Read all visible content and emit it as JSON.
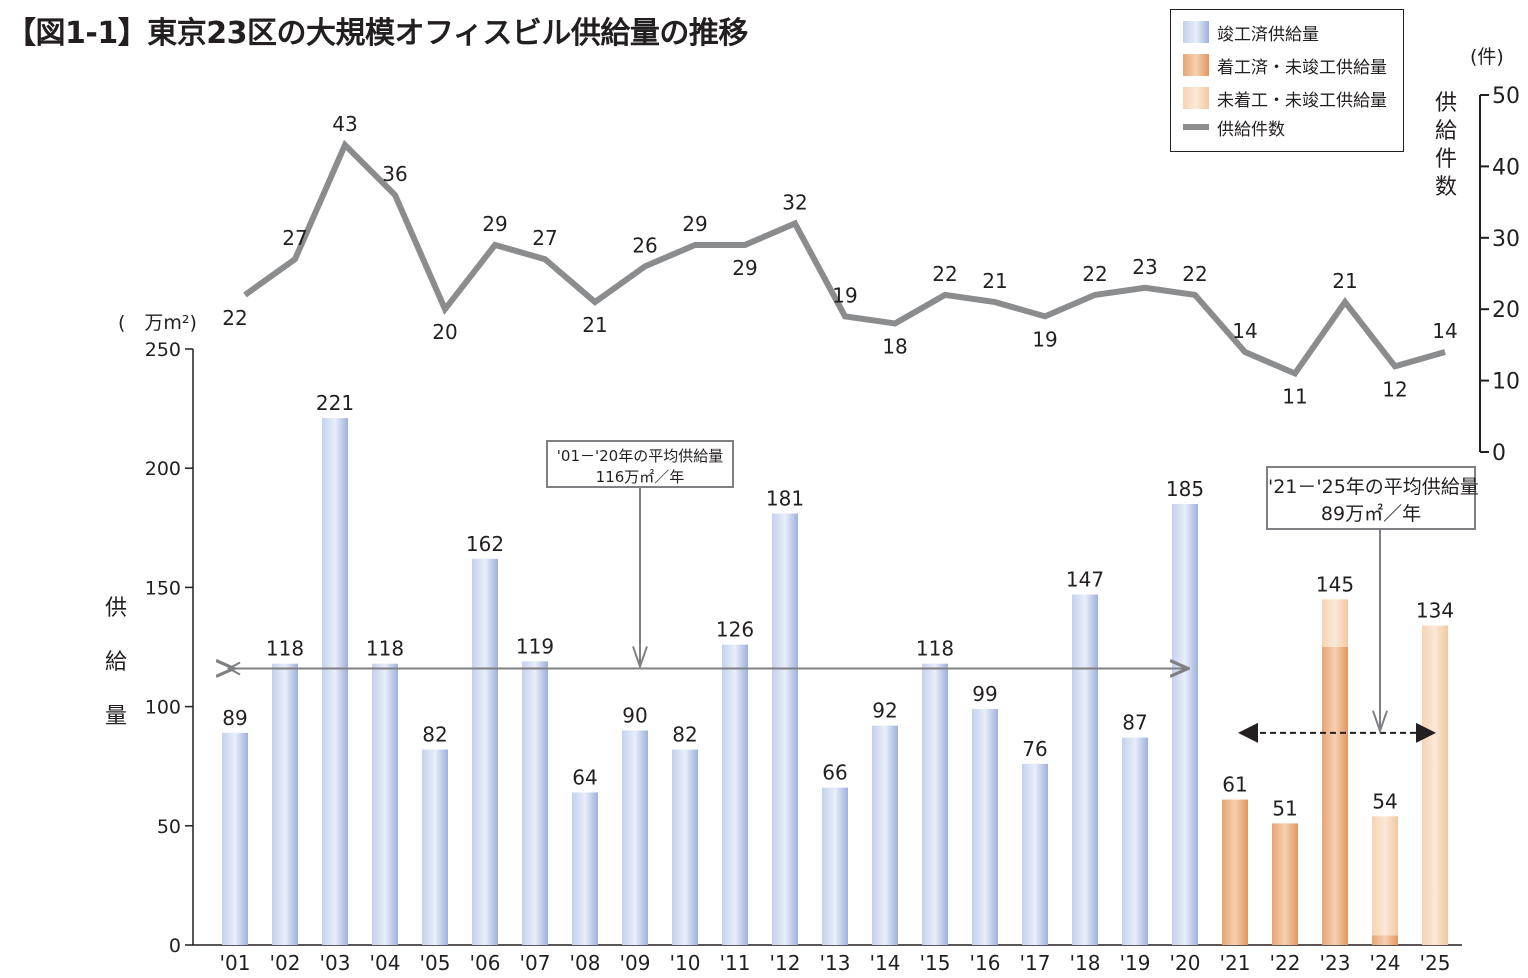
{
  "title": "【図1-1】東京23区の大規模オフィスビル供給量の推移",
  "legend": {
    "items": [
      {
        "label": "竣工済供給量",
        "color": "#a9bde3"
      },
      {
        "label": "着工済・未竣工供給量",
        "color": "#e8a575"
      },
      {
        "label": "未着工・未竣工供給量",
        "color": "#f6d3b0"
      },
      {
        "label": "供給件数",
        "color": "#8a8c8e"
      }
    ]
  },
  "left_axis": {
    "unit": "(　万m²)",
    "label_chars": [
      "供",
      "給",
      "量"
    ],
    "ticks": [
      "0",
      "50",
      "100",
      "150",
      "200",
      "250"
    ]
  },
  "right_axis": {
    "unit": "(件)",
    "label_chars": [
      "供",
      "給",
      "件",
      "数"
    ],
    "ticks": [
      "0",
      "10",
      "20",
      "30",
      "40",
      "50"
    ]
  },
  "annotations": {
    "avg1_line1": "'01－'20年の平均供給量",
    "avg1_line2": "116万㎡／年",
    "avg2_line1": "'21－'25年の平均供給量",
    "avg2_line2": "89万㎡／年"
  },
  "chart_data": {
    "type": "bar",
    "title": "【図1-1】東京23区の大規模オフィスビル供給量の推移",
    "categories": [
      "'01",
      "'02",
      "'03",
      "'04",
      "'05",
      "'06",
      "'07",
      "'08",
      "'09",
      "'10",
      "'11",
      "'12",
      "'13",
      "'14",
      "'15",
      "'16",
      "'17",
      "'18",
      "'19",
      "'20",
      "'21",
      "'22",
      "'23",
      "'24",
      "'25"
    ],
    "ylabel": "供給量",
    "yunit": "万m²",
    "ylim": [
      0,
      250
    ],
    "y2label": "供給件数",
    "y2unit": "件",
    "y2lim": [
      0,
      50
    ],
    "series": [
      {
        "name": "竣工済供給量",
        "type": "bar",
        "color": "#a9bde3",
        "values": [
          89,
          118,
          221,
          118,
          82,
          162,
          119,
          64,
          90,
          82,
          126,
          181,
          66,
          92,
          118,
          99,
          76,
          147,
          87,
          185,
          0,
          0,
          0,
          0,
          0
        ]
      },
      {
        "name": "着工済・未竣工供給量",
        "type": "bar",
        "color": "#e8a575",
        "values": [
          0,
          0,
          0,
          0,
          0,
          0,
          0,
          0,
          0,
          0,
          0,
          0,
          0,
          0,
          0,
          0,
          0,
          0,
          0,
          0,
          61,
          51,
          125,
          4,
          0
        ]
      },
      {
        "name": "未着工・未竣工供給量",
        "type": "bar",
        "color": "#f6d3b0",
        "values": [
          0,
          0,
          0,
          0,
          0,
          0,
          0,
          0,
          0,
          0,
          0,
          0,
          0,
          0,
          0,
          0,
          0,
          0,
          0,
          0,
          0,
          0,
          20,
          50,
          134
        ]
      },
      {
        "name": "供給件数",
        "type": "line",
        "axis": "right",
        "color": "#8a8c8e",
        "values": [
          22,
          27,
          43,
          36,
          20,
          29,
          27,
          21,
          26,
          29,
          29,
          32,
          19,
          18,
          22,
          21,
          19,
          22,
          23,
          22,
          14,
          11,
          21,
          12,
          14
        ]
      }
    ],
    "bar_labels": [
      "89",
      "118",
      "221",
      "118",
      "82",
      "162",
      "119",
      "64",
      "90",
      "82",
      "126",
      "181",
      "66",
      "92",
      "118",
      "99",
      "76",
      "147",
      "87",
      "185",
      "61",
      "51",
      "145",
      "54",
      "134"
    ],
    "line_labels": [
      "22",
      "27",
      "43",
      "36",
      "20",
      "29",
      "27",
      "21",
      "26",
      "29",
      "29",
      "32",
      "19",
      "18",
      "22",
      "21",
      "19",
      "22",
      "23",
      "22",
      "14",
      "11",
      "21",
      "12",
      "14"
    ],
    "averages": [
      {
        "label": "'01－'20年の平均供給量",
        "value": 116,
        "range": [
          "'01",
          "'20"
        ]
      },
      {
        "label": "'21－'25年の平均供給量",
        "value": 89,
        "range": [
          "'21",
          "'25"
        ]
      }
    ]
  }
}
